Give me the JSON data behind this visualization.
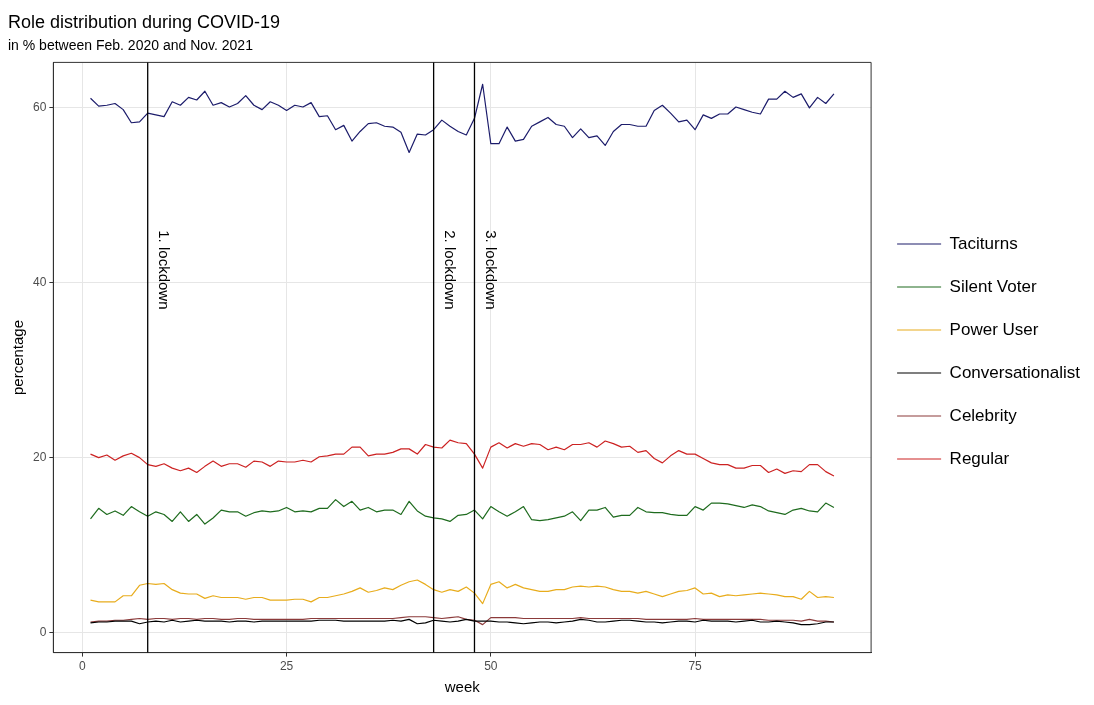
{
  "chart_data": {
    "type": "line",
    "title": "Role distribution during COVID-19",
    "subtitle": "in % between Feb. 2020 and Nov. 2021",
    "xlabel": "week",
    "ylabel": "percentage",
    "x": [
      1,
      2,
      3,
      4,
      5,
      6,
      7,
      8,
      9,
      10,
      11,
      12,
      13,
      14,
      15,
      16,
      17,
      18,
      19,
      20,
      21,
      22,
      23,
      24,
      25,
      26,
      27,
      28,
      29,
      30,
      31,
      32,
      33,
      34,
      35,
      36,
      37,
      38,
      39,
      40,
      41,
      42,
      43,
      44,
      45,
      46,
      47,
      48,
      49,
      50,
      51,
      52,
      53,
      54,
      55,
      56,
      57,
      58,
      59,
      60,
      61,
      62,
      63,
      64,
      65,
      66,
      67,
      68,
      69,
      70,
      71,
      72,
      73,
      74,
      75,
      76,
      77,
      78,
      79,
      80,
      81,
      82,
      83,
      84,
      85,
      86,
      87,
      88,
      89,
      90,
      91,
      92
    ],
    "series": [
      {
        "name": "Taciturns",
        "color": "#1c1c6b",
        "values": [
          61.1,
          60.2,
          60.3,
          60.5,
          59.8,
          58.3,
          58.4,
          59.4,
          59.2,
          59.0,
          60.7,
          60.3,
          61.2,
          60.9,
          61.9,
          60.3,
          60.6,
          60.1,
          60.5,
          61.4,
          60.3,
          59.8,
          60.7,
          60.3,
          59.7,
          60.3,
          60.1,
          60.6,
          59.0,
          59.1,
          57.5,
          58.0,
          56.2,
          57.3,
          58.2,
          58.3,
          57.9,
          57.8,
          57.2,
          54.9,
          57.0,
          56.9,
          57.5,
          58.6,
          57.9,
          57.3,
          56.9,
          58.8,
          62.7,
          55.9,
          55.9,
          57.8,
          56.2,
          56.4,
          57.9,
          58.4,
          58.9,
          58.1,
          57.9,
          56.6,
          57.6,
          56.6,
          56.8,
          55.7,
          57.3,
          58.1,
          58.1,
          57.9,
          57.9,
          59.7,
          60.3,
          59.4,
          58.4,
          58.6,
          57.5,
          59.2,
          58.8,
          59.3,
          59.3,
          60.1,
          59.8,
          59.5,
          59.3,
          61.0,
          61.0,
          61.9,
          61.2,
          61.6,
          60.0,
          61.2,
          60.5,
          61.6
        ]
      },
      {
        "name": "Silent Voter",
        "color": "#1e6b1e",
        "values": [
          13.0,
          14.2,
          13.5,
          13.9,
          13.4,
          14.4,
          13.8,
          13.3,
          13.8,
          13.5,
          12.7,
          13.8,
          12.7,
          13.5,
          12.4,
          13.1,
          14.0,
          13.8,
          13.8,
          13.3,
          13.7,
          13.9,
          13.8,
          13.9,
          14.3,
          13.8,
          13.9,
          13.8,
          14.2,
          14.2,
          15.2,
          14.4,
          15.0,
          14.0,
          14.3,
          13.8,
          14.0,
          14.0,
          13.5,
          15.0,
          13.9,
          13.3,
          13.1,
          13.0,
          12.7,
          13.4,
          13.5,
          14.0,
          13.0,
          14.4,
          13.8,
          13.3,
          13.8,
          14.4,
          12.9,
          12.8,
          12.9,
          13.1,
          13.3,
          13.8,
          12.8,
          14.0,
          14.0,
          14.3,
          13.2,
          13.4,
          13.4,
          14.3,
          13.8,
          13.7,
          13.7,
          13.5,
          13.4,
          13.4,
          14.4,
          14.0,
          14.8,
          14.8,
          14.7,
          14.5,
          14.3,
          14.6,
          14.4,
          13.9,
          13.7,
          13.5,
          14.0,
          14.2,
          13.9,
          13.8,
          14.8,
          14.3
        ]
      },
      {
        "name": "Power User",
        "color": "#e8ac1c",
        "values": [
          3.7,
          3.5,
          3.5,
          3.5,
          4.2,
          4.2,
          5.4,
          5.6,
          5.5,
          5.6,
          4.9,
          4.5,
          4.4,
          4.4,
          3.9,
          4.2,
          4.0,
          4.0,
          4.0,
          3.8,
          4.0,
          4.0,
          3.7,
          3.7,
          3.7,
          3.8,
          3.8,
          3.5,
          4.0,
          4.0,
          4.2,
          4.4,
          4.7,
          5.1,
          4.6,
          4.8,
          5.1,
          4.9,
          5.4,
          5.8,
          6.0,
          5.5,
          4.9,
          4.6,
          4.9,
          4.7,
          5.2,
          4.5,
          3.3,
          5.5,
          5.8,
          5.1,
          5.5,
          5.1,
          4.9,
          4.7,
          4.7,
          4.9,
          4.9,
          5.2,
          5.3,
          5.2,
          5.3,
          5.2,
          4.9,
          4.7,
          4.7,
          4.5,
          4.7,
          4.4,
          4.1,
          4.4,
          4.7,
          4.8,
          5.1,
          4.4,
          4.5,
          4.1,
          4.3,
          4.2,
          4.3,
          4.4,
          4.5,
          4.4,
          4.3,
          4.1,
          4.1,
          3.8,
          4.7,
          4.0,
          4.1,
          4.0
        ]
      },
      {
        "name": "Conversationalist",
        "color": "#000000",
        "values": [
          1.1,
          1.2,
          1.2,
          1.3,
          1.3,
          1.3,
          1.0,
          1.2,
          1.3,
          1.2,
          1.4,
          1.2,
          1.3,
          1.4,
          1.3,
          1.3,
          1.3,
          1.2,
          1.3,
          1.3,
          1.2,
          1.3,
          1.3,
          1.3,
          1.3,
          1.3,
          1.3,
          1.3,
          1.4,
          1.4,
          1.4,
          1.3,
          1.3,
          1.3,
          1.3,
          1.3,
          1.3,
          1.4,
          1.3,
          1.5,
          1.0,
          1.1,
          1.4,
          1.3,
          1.2,
          1.3,
          1.5,
          1.3,
          1.3,
          1.3,
          1.2,
          1.2,
          1.1,
          1.0,
          1.1,
          1.2,
          1.2,
          1.1,
          1.2,
          1.3,
          1.5,
          1.4,
          1.2,
          1.2,
          1.3,
          1.4,
          1.4,
          1.3,
          1.2,
          1.2,
          1.1,
          1.2,
          1.3,
          1.3,
          1.2,
          1.4,
          1.3,
          1.3,
          1.3,
          1.2,
          1.3,
          1.4,
          1.2,
          1.2,
          1.3,
          1.2,
          1.1,
          0.9,
          0.9,
          1.0,
          1.2,
          1.2
        ]
      },
      {
        "name": "Celebrity",
        "color": "#8b3a3a",
        "values": [
          1.2,
          1.3,
          1.3,
          1.4,
          1.4,
          1.5,
          1.6,
          1.5,
          1.6,
          1.6,
          1.5,
          1.6,
          1.6,
          1.5,
          1.6,
          1.6,
          1.5,
          1.5,
          1.6,
          1.6,
          1.5,
          1.5,
          1.5,
          1.5,
          1.5,
          1.5,
          1.5,
          1.6,
          1.6,
          1.6,
          1.6,
          1.6,
          1.6,
          1.6,
          1.6,
          1.6,
          1.6,
          1.6,
          1.7,
          1.8,
          1.8,
          1.8,
          1.7,
          1.6,
          1.7,
          1.8,
          1.5,
          1.4,
          0.9,
          1.7,
          1.7,
          1.7,
          1.7,
          1.6,
          1.6,
          1.6,
          1.6,
          1.6,
          1.6,
          1.6,
          1.7,
          1.6,
          1.6,
          1.6,
          1.6,
          1.6,
          1.6,
          1.6,
          1.5,
          1.5,
          1.5,
          1.5,
          1.5,
          1.5,
          1.6,
          1.5,
          1.5,
          1.5,
          1.5,
          1.5,
          1.5,
          1.5,
          1.5,
          1.4,
          1.4,
          1.4,
          1.4,
          1.3,
          1.5,
          1.3,
          1.3,
          1.2
        ]
      },
      {
        "name": "Regular",
        "color": "#cc2222",
        "values": [
          20.4,
          20.0,
          20.3,
          19.7,
          20.2,
          20.5,
          20.0,
          19.2,
          19.0,
          19.3,
          18.8,
          18.5,
          18.8,
          18.3,
          19.0,
          19.6,
          19.0,
          19.3,
          19.3,
          18.9,
          19.6,
          19.5,
          19.0,
          19.6,
          19.5,
          19.5,
          19.7,
          19.5,
          20.1,
          20.2,
          20.4,
          20.4,
          21.2,
          21.2,
          20.2,
          20.4,
          20.4,
          20.6,
          21.0,
          21.0,
          20.4,
          21.5,
          21.2,
          21.1,
          22.0,
          21.7,
          21.6,
          20.4,
          18.8,
          21.2,
          21.7,
          21.1,
          21.6,
          21.3,
          21.6,
          21.5,
          20.9,
          21.2,
          20.9,
          21.5,
          21.5,
          21.7,
          21.2,
          21.9,
          21.6,
          21.2,
          21.3,
          20.6,
          20.8,
          19.9,
          19.4,
          20.2,
          20.8,
          20.4,
          20.4,
          19.9,
          19.4,
          19.2,
          19.2,
          18.8,
          18.8,
          19.1,
          19.1,
          18.3,
          18.7,
          18.2,
          18.5,
          18.4,
          19.2,
          19.2,
          18.4,
          17.9
        ]
      }
    ],
    "xlim": [
      -3.55,
      96.55
    ],
    "xticks": [
      0,
      25,
      50,
      75
    ],
    "ylim": [
      -2.3,
      65.2
    ],
    "yticks": [
      0,
      20,
      40,
      60
    ],
    "ref_lines": [
      {
        "axis": "x",
        "value": 8,
        "label": "1. lockdown",
        "color": "#000000"
      },
      {
        "axis": "x",
        "value": 43,
        "label": "2. lockdown",
        "color": "#000000"
      },
      {
        "axis": "x",
        "value": 48,
        "label": "3. lockdown",
        "color": "#000000"
      }
    ],
    "grid": true,
    "legend": "right",
    "marker": "none",
    "line_style": "solid"
  }
}
